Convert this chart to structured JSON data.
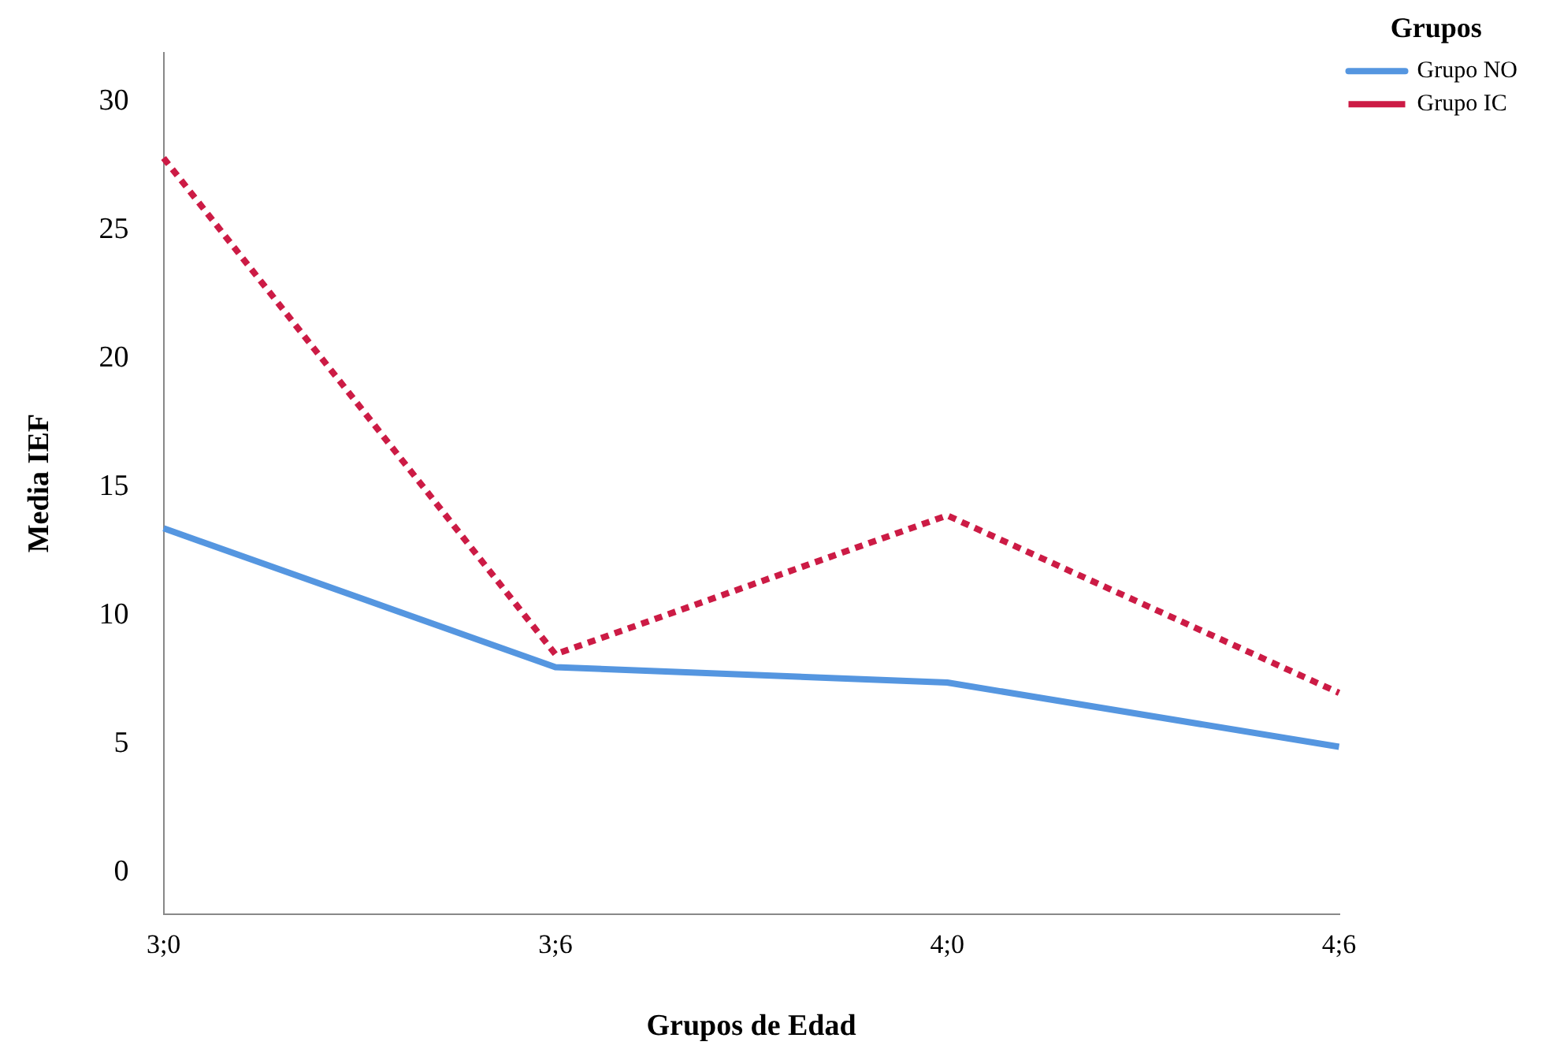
{
  "chart_data": {
    "type": "line",
    "xlabel": "Grupos de Edad",
    "ylabel": "Media IEF",
    "legend_title": "Grupos",
    "categories": [
      "3;0",
      "3;6",
      "4;0",
      "4;6"
    ],
    "series": [
      {
        "name": "Grupo NO",
        "color": "#5596e0",
        "line_style": "solid",
        "values": [
          13.4,
          8.0,
          7.4,
          4.9
        ]
      },
      {
        "name": "Grupo IC",
        "color": "#cc1b45",
        "line_style": "dotted",
        "values": [
          27.8,
          8.5,
          13.9,
          7.0
        ]
      }
    ],
    "ylim": [
      -1.6,
      31.9
    ],
    "yticks": [
      0,
      5,
      10,
      15,
      20,
      25,
      30
    ],
    "grid": false,
    "legend": "top right",
    "marker": "none"
  }
}
